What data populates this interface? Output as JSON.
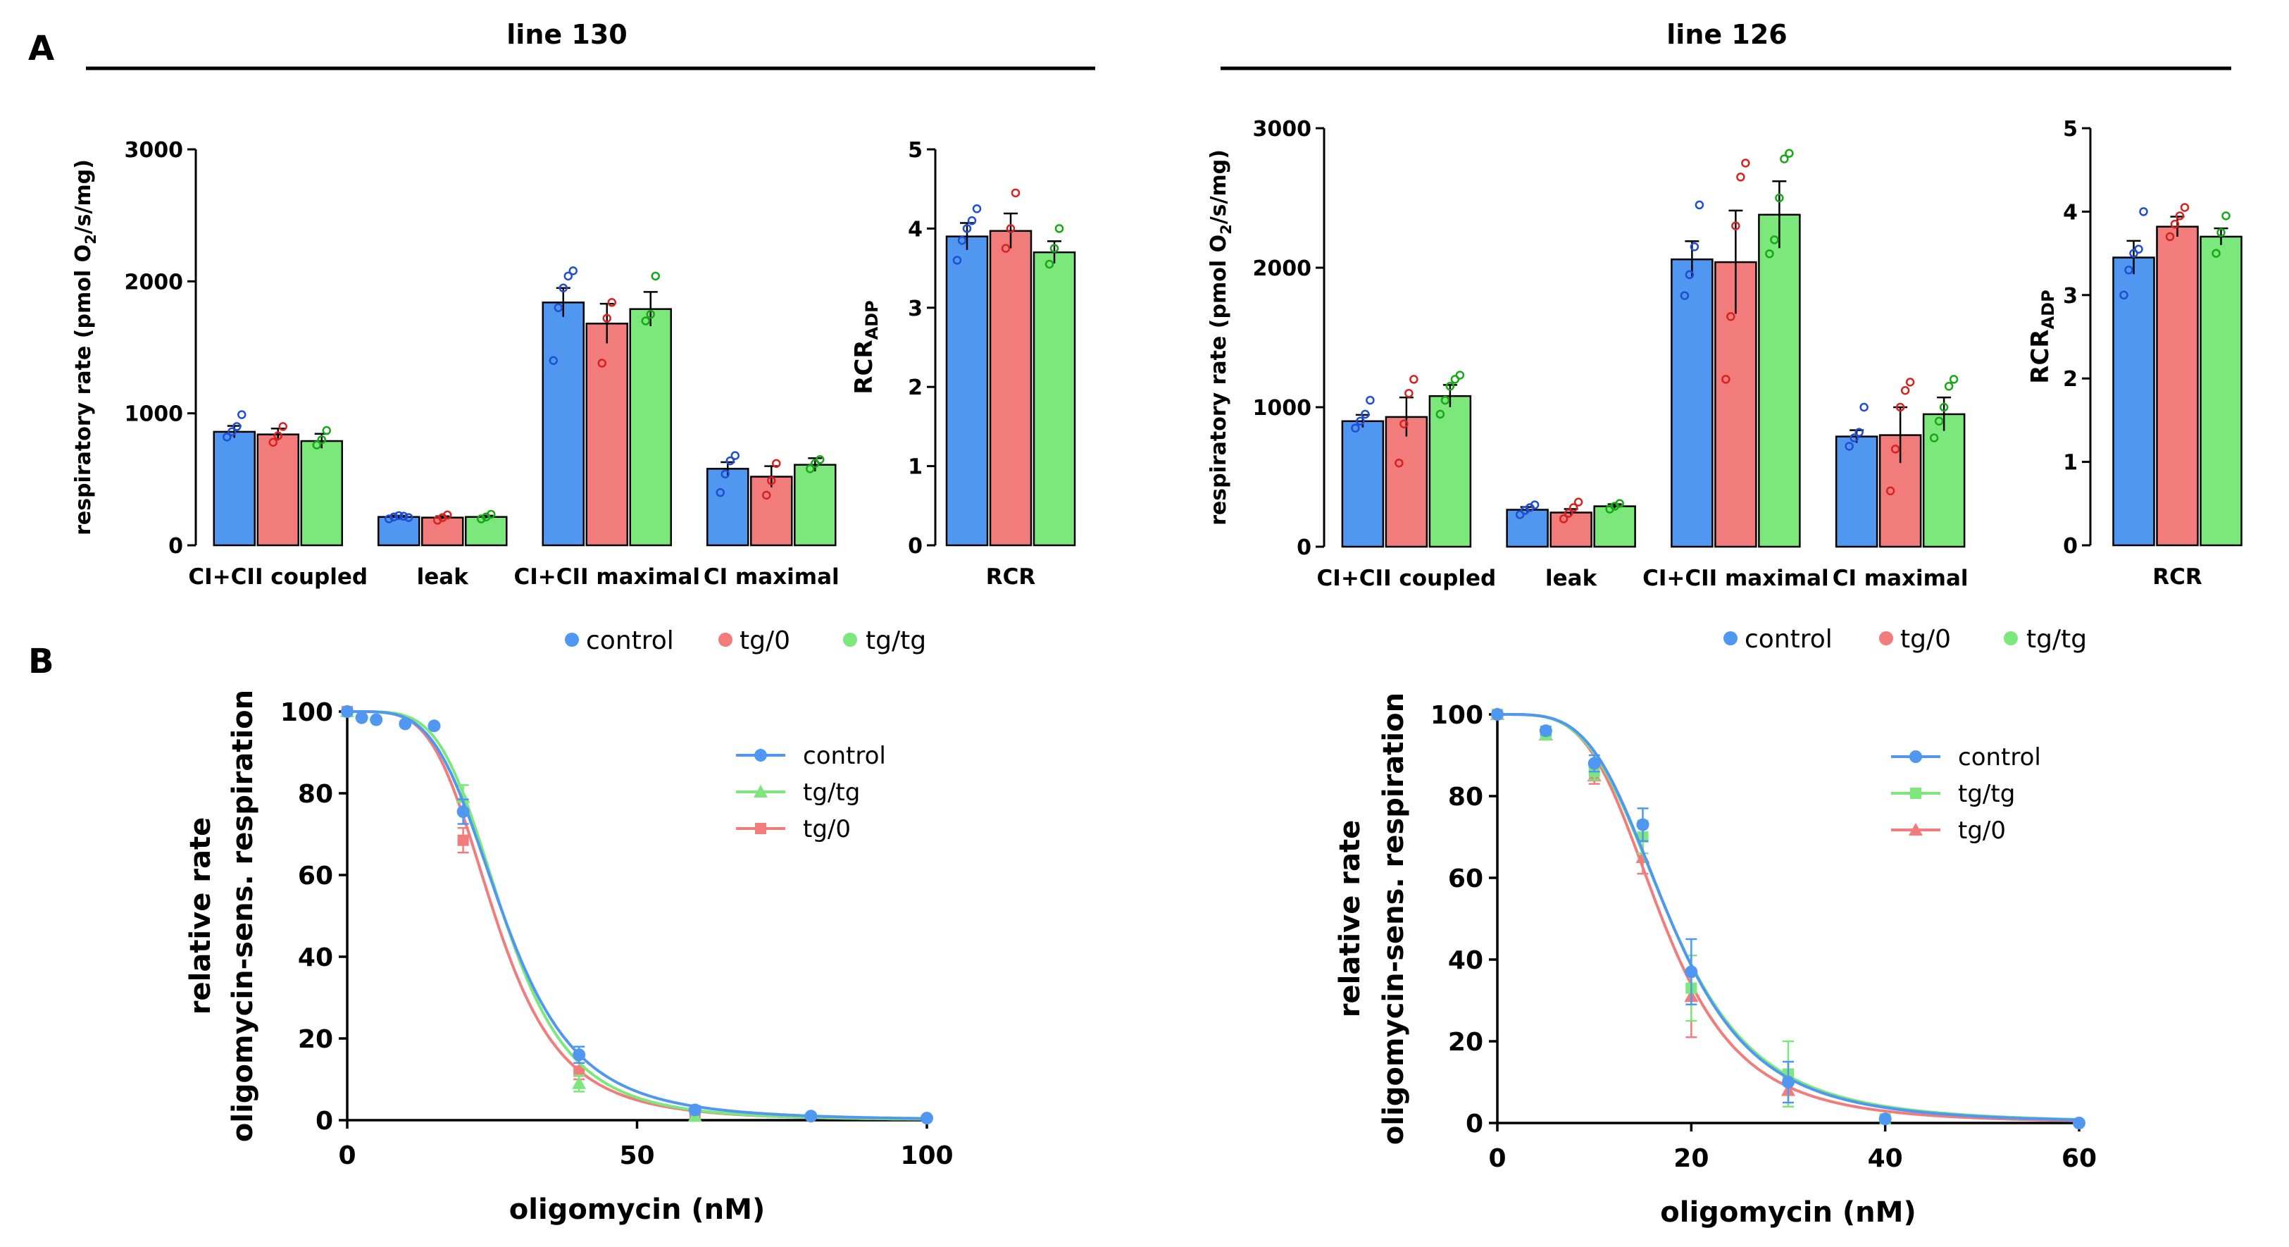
{
  "panel_labels": {
    "a": "A",
    "b": "B"
  },
  "groups": [
    {
      "title": "line 130"
    },
    {
      "title": "line 126"
    }
  ],
  "legend_A": [
    {
      "name": "control",
      "color": "#4f97f0"
    },
    {
      "name": "tg/0",
      "color": "#f27c7c"
    },
    {
      "name": "tg/tg",
      "color": "#7ce87c"
    }
  ],
  "colors": {
    "control": "#4f97f0",
    "tg0": "#f27c7c",
    "tgtg": "#7ce87c",
    "control_dot": "#1f4fd0",
    "tg0_dot": "#d8221e",
    "tgtg_dot": "#16a816"
  },
  "chart_data": [
    {
      "id": "A_line130_rates",
      "type": "bar",
      "group_title": "line 130",
      "ylabel": "respiratory rate (pmol O2/s/mg)",
      "ylabel_parts": {
        "pre": "respiratory rate (pmol O",
        "sub": "2",
        "post": "/s/mg)"
      },
      "ylim": [
        0,
        3000
      ],
      "yticks": [
        0,
        1000,
        2000,
        3000
      ],
      "categories": [
        "CI+CII coupled",
        "leak",
        "CI+CII maximal",
        "CI maximal"
      ],
      "series": [
        {
          "name": "control",
          "values": [
            860,
            215,
            1840,
            580
          ],
          "sem": [
            45,
            10,
            110,
            50
          ],
          "points": [
            [
              820,
              860,
              900,
              990
            ],
            [
              200,
              215,
              225,
              220,
              210
            ],
            [
              1400,
              1800,
              1950,
              2040,
              2080
            ],
            [
              400,
              540,
              640,
              680
            ]
          ]
        },
        {
          "name": "tg/0",
          "values": [
            840,
            210,
            1680,
            520
          ],
          "sem": [
            45,
            10,
            150,
            80
          ],
          "points": [
            [
              780,
              830,
              900
            ],
            [
              190,
              210,
              230
            ],
            [
              1380,
              1720,
              1840
            ],
            [
              380,
              490,
              620
            ]
          ]
        },
        {
          "name": "tg/tg",
          "values": [
            790,
            215,
            1790,
            610
          ],
          "sem": [
            55,
            10,
            130,
            50
          ],
          "points": [
            [
              760,
              800,
              870
            ],
            [
              200,
              215,
              235
            ],
            [
              1700,
              1750,
              2040
            ],
            [
              580,
              620,
              650
            ]
          ]
        }
      ]
    },
    {
      "id": "A_line130_rcr",
      "type": "bar",
      "ylabel": "RCR ADP",
      "ylabel_parts": {
        "pre": "RCR",
        "sub": "ADP"
      },
      "ylim": [
        0,
        5
      ],
      "yticks": [
        0,
        1,
        2,
        3,
        4,
        5
      ],
      "categories": [
        "RCR"
      ],
      "series": [
        {
          "name": "control",
          "values": [
            3.9
          ],
          "sem": [
            0.17
          ],
          "points": [
            [
              3.6,
              3.85,
              4.0,
              4.1,
              4.25
            ]
          ]
        },
        {
          "name": "tg/0",
          "values": [
            3.97
          ],
          "sem": [
            0.22
          ],
          "points": [
            [
              3.75,
              4.0,
              4.45
            ]
          ]
        },
        {
          "name": "tg/tg",
          "values": [
            3.7
          ],
          "sem": [
            0.14
          ],
          "points": [
            [
              3.55,
              3.75,
              4.0
            ]
          ]
        }
      ]
    },
    {
      "id": "A_line126_rates",
      "type": "bar",
      "group_title": "line 126",
      "ylabel": "respiratory rate (pmol O2/s/mg)",
      "ylabel_parts": {
        "pre": "respiratory rate (pmol O",
        "sub": "2",
        "post": "/s/mg)"
      },
      "ylim": [
        0,
        3000
      ],
      "yticks": [
        0,
        1000,
        2000,
        3000
      ],
      "categories": [
        "CI+CII coupled",
        "leak",
        "CI+CII maximal",
        "CI maximal"
      ],
      "series": [
        {
          "name": "control",
          "values": [
            900,
            265,
            2060,
            790
          ],
          "sem": [
            45,
            20,
            130,
            45
          ],
          "points": [
            [
              850,
              900,
              950,
              1050
            ],
            [
              230,
              260,
              280,
              300
            ],
            [
              1800,
              1950,
              2150,
              2450
            ],
            [
              720,
              780,
              820,
              1000
            ]
          ]
        },
        {
          "name": "tg/0",
          "values": [
            930,
            245,
            2040,
            800
          ],
          "sem": [
            140,
            25,
            370,
            200
          ],
          "points": [
            [
              600,
              880,
              1100,
              1200
            ],
            [
              200,
              240,
              280,
              320
            ],
            [
              1200,
              1650,
              2300,
              2650,
              2750
            ],
            [
              400,
              700,
              1000,
              1120,
              1180
            ]
          ]
        },
        {
          "name": "tg/tg",
          "values": [
            1080,
            290,
            2380,
            950
          ],
          "sem": [
            80,
            15,
            240,
            120
          ],
          "points": [
            [
              950,
              1050,
              1150,
              1200,
              1230
            ],
            [
              270,
              290,
              310
            ],
            [
              2100,
              2200,
              2500,
              2780,
              2820
            ],
            [
              780,
              900,
              1000,
              1150,
              1200
            ]
          ]
        }
      ]
    },
    {
      "id": "A_line126_rcr",
      "type": "bar",
      "ylabel": "RCR ADP",
      "ylabel_parts": {
        "pre": "RCR",
        "sub": "ADP"
      },
      "ylim": [
        0,
        5
      ],
      "yticks": [
        0,
        1,
        2,
        3,
        4,
        5
      ],
      "categories": [
        "RCR"
      ],
      "series": [
        {
          "name": "control",
          "values": [
            3.45
          ],
          "sem": [
            0.2
          ],
          "points": [
            [
              3.0,
              3.3,
              3.5,
              3.55,
              4.0
            ]
          ]
        },
        {
          "name": "tg/0",
          "values": [
            3.82
          ],
          "sem": [
            0.12
          ],
          "points": [
            [
              3.7,
              3.85,
              3.95,
              4.05
            ]
          ]
        },
        {
          "name": "tg/tg",
          "values": [
            3.7
          ],
          "sem": [
            0.1
          ],
          "points": [
            [
              3.5,
              3.75,
              3.95
            ]
          ]
        }
      ]
    },
    {
      "id": "B_line130",
      "type": "line",
      "xlabel": "oligomycin (nM)",
      "ylabel": "relative rate oligomycin-sens. respiration",
      "ylabel_lines": [
        "relative rate",
        "oligomycin-sens. respiration"
      ],
      "xlim": [
        0,
        100
      ],
      "xticks": [
        0,
        50,
        100
      ],
      "ylim": [
        0,
        100
      ],
      "yticks": [
        0,
        20,
        40,
        60,
        80,
        100
      ],
      "legend": [
        "control",
        "tg/tg",
        "tg/0"
      ],
      "series": [
        {
          "name": "control",
          "marker": "circle",
          "ic50": 27,
          "hill": 4.2,
          "x": [
            0,
            2.5,
            5,
            10,
            15,
            20,
            40,
            60,
            80,
            100
          ],
          "y": [
            100,
            98.5,
            98,
            97,
            96.5,
            75.5,
            16,
            2.5,
            1,
            0.5
          ],
          "err": [
            0,
            0,
            0,
            0,
            0,
            3,
            2,
            1,
            0,
            0
          ]
        },
        {
          "name": "tg/tg",
          "marker": "triangle",
          "ic50": 27,
          "hill": 4.6,
          "x": [
            0,
            20,
            40,
            60
          ],
          "y": [
            100,
            79,
            9,
            1
          ],
          "err": [
            0,
            3,
            2,
            0
          ]
        },
        {
          "name": "tg/0",
          "marker": "square",
          "ic50": 25.5,
          "hill": 4.4,
          "x": [
            0,
            20,
            40,
            60
          ],
          "y": [
            100,
            68.5,
            12,
            1
          ],
          "err": [
            0,
            3,
            2,
            0
          ]
        }
      ]
    },
    {
      "id": "B_line126",
      "type": "line",
      "xlabel": "oligomycin (nM)",
      "ylabel": "relative rate oligomycin-sens. respiration",
      "ylabel_lines": [
        "relative rate",
        "oligomycin-sens. respiration"
      ],
      "xlim": [
        0,
        60
      ],
      "xticks": [
        0,
        20,
        40,
        60
      ],
      "ylim": [
        0,
        100
      ],
      "yticks": [
        0,
        20,
        40,
        60,
        80,
        100
      ],
      "legend": [
        "control",
        "tg/tg",
        "tg/0"
      ],
      "series": [
        {
          "name": "control",
          "marker": "circle",
          "ic50": 17.8,
          "hill": 4.0,
          "x": [
            0,
            5,
            10,
            15,
            20,
            30,
            40,
            60
          ],
          "y": [
            100,
            96,
            88,
            73,
            37,
            10,
            1,
            0
          ],
          "err": [
            0,
            1,
            2,
            4,
            8,
            5,
            0,
            0
          ]
        },
        {
          "name": "tg/tg",
          "marker": "square",
          "ic50": 17.8,
          "hill": 3.9,
          "x": [
            0,
            5,
            10,
            15,
            20,
            30,
            40
          ],
          "y": [
            100,
            95,
            86,
            70,
            33,
            12,
            1
          ],
          "err": [
            0,
            1,
            2,
            4,
            8,
            8,
            0
          ]
        },
        {
          "name": "tg/0",
          "marker": "triangle",
          "ic50": 17.0,
          "hill": 4.1,
          "x": [
            0,
            5,
            10,
            15,
            20,
            30
          ],
          "y": [
            100,
            95,
            85,
            65,
            31,
            8
          ],
          "err": [
            0,
            1,
            2,
            4,
            10,
            4
          ]
        }
      ]
    }
  ]
}
